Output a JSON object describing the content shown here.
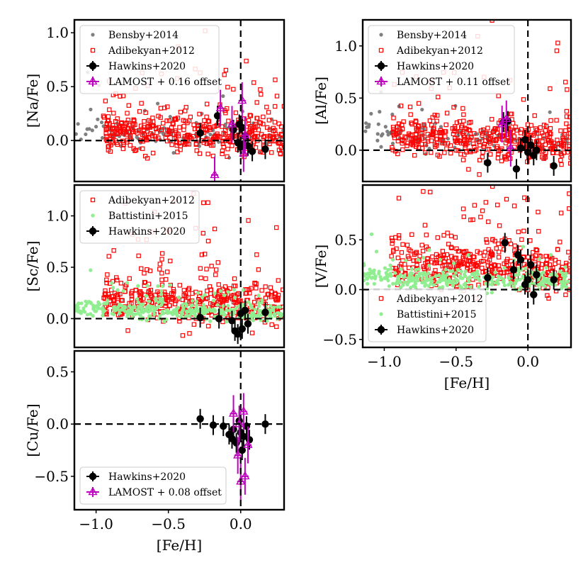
{
  "chart_data": [
    {
      "id": "na",
      "type": "scatter",
      "ylabel": "[Na/Fe]",
      "xlabel": "",
      "xlim": [
        -1.15,
        0.3
      ],
      "ylim": [
        -0.38,
        1.12
      ],
      "xticks": [],
      "xtick_labels": [],
      "yticks": [
        0.0,
        0.5,
        1.0
      ],
      "ytick_labels": [
        "0.0",
        "0.5",
        "1.0"
      ],
      "legend_position": "upper-left",
      "legend": [
        "Bensby+2014",
        "Adibekyan+2012",
        "Hawkins+2020",
        "LAMOST + 0.16 offset"
      ],
      "series": [
        {
          "name": "Bensby+2014",
          "marker": "dot",
          "color": "#7f7f7f",
          "center": [
            0.08,
            0.02
          ],
          "spread": [
            0.1,
            0.07
          ],
          "count": 110,
          "x_range": [
            -1.15,
            0.3
          ]
        },
        {
          "name": "Adibekyan+2012",
          "marker": "open-square",
          "color": "#ff0000",
          "center": [
            0.1,
            0.05
          ],
          "spread": [
            0.15,
            0.1
          ],
          "count": 420,
          "x_range": [
            -0.95,
            0.3
          ]
        },
        {
          "name": "Hawkins+2020",
          "marker": "filled-circle-errorbar",
          "color": "#000000",
          "x": [
            -0.28,
            -0.16,
            -0.05,
            -0.02,
            0.0,
            0.01,
            0.03,
            0.05,
            0.08,
            0.17,
            -0.01,
            0.02
          ],
          "y": [
            0.07,
            0.23,
            0.1,
            -0.02,
            -0.06,
            0.12,
            0.04,
            -0.05,
            -0.1,
            -0.08,
            0.15,
            -0.03
          ]
        },
        {
          "name": "LAMOST + 0.16 offset",
          "marker": "open-triangle",
          "color": "#bf00bf",
          "x": [
            -0.14,
            -0.06,
            0.01,
            0.03,
            0.02,
            -0.18
          ],
          "y": [
            0.3,
            0.15,
            0.37,
            0.05,
            -0.12,
            -0.32
          ]
        }
      ]
    },
    {
      "id": "al",
      "type": "scatter",
      "ylabel": "[Al/Fe]",
      "xlabel": "",
      "xlim": [
        -1.15,
        0.3
      ],
      "ylim": [
        -0.3,
        1.25
      ],
      "xticks": [],
      "xtick_labels": [],
      "yticks": [
        0.0,
        0.5,
        1.0
      ],
      "ytick_labels": [
        "0.0",
        "0.5",
        "1.0"
      ],
      "legend_position": "upper-left",
      "legend": [
        "Bensby+2014",
        "Adibekyan+2012",
        "Hawkins+2020",
        "LAMOST + 0.11 offset"
      ],
      "series": [
        {
          "name": "Bensby+2014",
          "marker": "dot",
          "color": "#7f7f7f",
          "center": [
            0.2,
            0.05
          ],
          "spread": [
            0.12,
            0.08
          ],
          "count": 110,
          "x_range": [
            -1.15,
            0.3
          ]
        },
        {
          "name": "Adibekyan+2012",
          "marker": "open-square",
          "color": "#ff0000",
          "center": [
            0.15,
            0.07
          ],
          "spread": [
            0.2,
            0.1
          ],
          "count": 420,
          "x_range": [
            -0.95,
            0.3
          ]
        },
        {
          "name": "Hawkins+2020",
          "marker": "filled-circle-errorbar",
          "color": "#000000",
          "x": [
            -0.28,
            -0.17,
            -0.14,
            -0.05,
            -0.02,
            0.0,
            0.02,
            0.04,
            0.06,
            0.18,
            -0.08
          ],
          "y": [
            -0.12,
            0.27,
            0.28,
            0.02,
            0.1,
            -0.02,
            0.05,
            -0.05,
            0.0,
            -0.15,
            -0.18
          ]
        },
        {
          "name": "LAMOST + 0.11 offset",
          "marker": "open-triangle",
          "color": "#bf00bf",
          "x": [
            -0.15,
            -0.12,
            -0.18
          ],
          "y": [
            0.3,
            0.02,
            0.25
          ]
        }
      ]
    },
    {
      "id": "sc",
      "type": "scatter",
      "ylabel": "[Sc/Fe]",
      "xlabel": "",
      "xlim": [
        -1.15,
        0.3
      ],
      "ylim": [
        -0.28,
        1.3
      ],
      "xticks": [],
      "xtick_labels": [],
      "yticks": [
        0.0,
        0.5,
        1.0
      ],
      "ytick_labels": [
        "0.0",
        "0.5",
        "1.0"
      ],
      "legend_position": "upper-left",
      "legend": [
        "Adibekyan+2012",
        "Battistini+2015",
        "Hawkins+2020"
      ],
      "series": [
        {
          "name": "Adibekyan+2012",
          "marker": "open-square",
          "color": "#ff0000",
          "center": [
            0.2,
            0.12
          ],
          "spread": [
            0.28,
            0.1
          ],
          "count": 420,
          "x_range": [
            -0.95,
            0.3
          ]
        },
        {
          "name": "Battistini+2015",
          "marker": "dot",
          "color": "#90ee90",
          "center": [
            0.1,
            0.05
          ],
          "spread": [
            0.07,
            0.04
          ],
          "count": 380,
          "x_range": [
            -1.15,
            0.3
          ]
        },
        {
          "name": "Hawkins+2020",
          "marker": "filled-circle-errorbar",
          "color": "#000000",
          "x": [
            -0.28,
            -0.15,
            -0.06,
            -0.02,
            0.0,
            0.01,
            0.03,
            0.05,
            0.17,
            -0.04
          ],
          "y": [
            0.01,
            0.0,
            -0.02,
            -0.15,
            0.05,
            -0.1,
            0.08,
            -0.05,
            0.06,
            -0.12
          ]
        }
      ]
    },
    {
      "id": "v",
      "type": "scatter",
      "ylabel": "[V/Fe]",
      "xlabel": "[Fe/H]",
      "xlim": [
        -1.15,
        0.3
      ],
      "ylim": [
        -0.58,
        1.05
      ],
      "xticks": [
        -1.0,
        -0.5,
        0.0
      ],
      "xtick_labels": [
        "−1.0",
        "−0.5",
        "0.0"
      ],
      "yticks": [
        -0.5,
        0.0,
        0.5
      ],
      "ytick_labels": [
        "−0.5",
        "0.0",
        "0.5"
      ],
      "legend_position": "lower-left",
      "legend": [
        "Adibekyan+2012",
        "Battistini+2015",
        "Hawkins+2020"
      ],
      "series": [
        {
          "name": "Adibekyan+2012",
          "marker": "open-square",
          "color": "#ff0000",
          "center": [
            0.3,
            0.18
          ],
          "spread": [
            0.25,
            0.12
          ],
          "count": 420,
          "x_range": [
            -0.95,
            0.3
          ]
        },
        {
          "name": "Battistini+2015",
          "marker": "dot",
          "color": "#90ee90",
          "center": [
            0.12,
            0.08
          ],
          "spread": [
            0.1,
            0.05
          ],
          "count": 350,
          "x_range": [
            -1.15,
            0.3
          ]
        },
        {
          "name": "Hawkins+2020",
          "marker": "filled-circle-errorbar",
          "color": "#000000",
          "x": [
            -0.28,
            -0.16,
            -0.1,
            -0.05,
            -0.02,
            0.0,
            0.02,
            0.04,
            0.06,
            0.18,
            -0.07
          ],
          "y": [
            0.12,
            0.47,
            0.2,
            0.3,
            0.05,
            0.1,
            0.25,
            -0.05,
            0.15,
            0.1,
            0.35
          ]
        }
      ]
    },
    {
      "id": "cu",
      "type": "scatter",
      "ylabel": "[Cu/Fe]",
      "xlabel": "[Fe/H]",
      "xlim": [
        -1.15,
        0.3
      ],
      "ylim": [
        -0.82,
        0.7
      ],
      "xticks": [
        -1.0,
        -0.5,
        0.0
      ],
      "xtick_labels": [
        "−1.0",
        "−0.5",
        "0.0"
      ],
      "yticks": [
        -0.5,
        0.0,
        0.5
      ],
      "ytick_labels": [
        "−0.5",
        "0.0",
        "0.5"
      ],
      "legend_position": "lower-left",
      "legend": [
        "Hawkins+2020",
        "LAMOST + 0.08 offset"
      ],
      "series": [
        {
          "name": "Hawkins+2020",
          "marker": "filled-circle-errorbar",
          "color": "#000000",
          "x": [
            -0.28,
            -0.19,
            -0.12,
            -0.08,
            -0.05,
            -0.03,
            0.0,
            0.01,
            0.02,
            0.04,
            0.06,
            0.17,
            -0.01,
            -0.06
          ],
          "y": [
            0.05,
            -0.01,
            -0.02,
            -0.1,
            -0.05,
            -0.18,
            -0.08,
            -0.25,
            -0.12,
            -0.02,
            -0.15,
            0.0,
            0.03,
            -0.14
          ]
        },
        {
          "name": "LAMOST + 0.08 offset",
          "marker": "open-triangle",
          "color": "#bf00bf",
          "x": [
            -0.05,
            -0.02,
            0.0,
            0.02,
            0.03,
            0.05,
            -0.01
          ],
          "y": [
            0.1,
            -0.3,
            -0.55,
            0.12,
            -0.5,
            -0.2,
            0.0
          ]
        }
      ]
    }
  ]
}
